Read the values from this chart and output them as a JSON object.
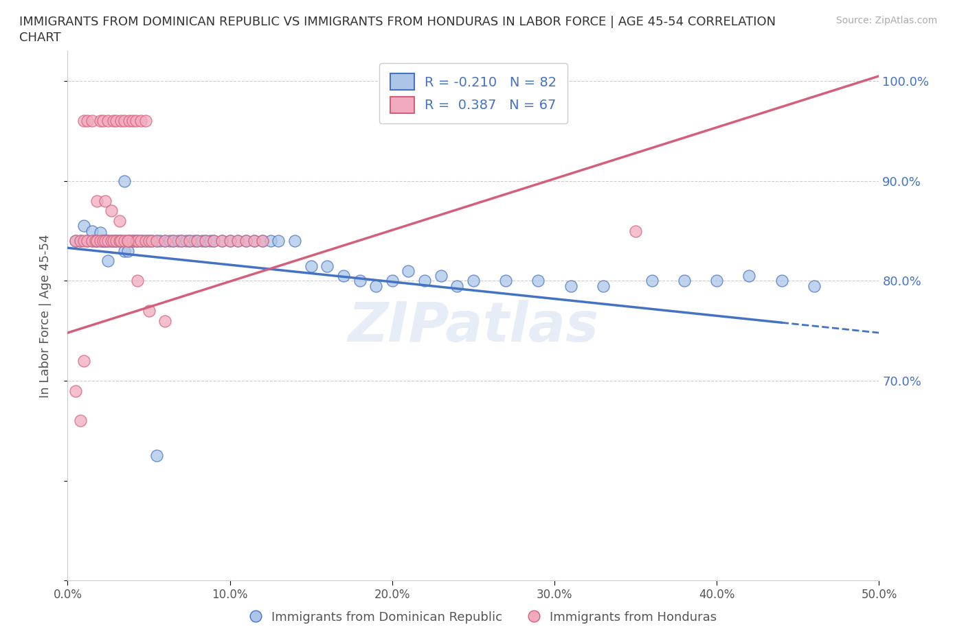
{
  "title_line1": "IMMIGRANTS FROM DOMINICAN REPUBLIC VS IMMIGRANTS FROM HONDURAS IN LABOR FORCE | AGE 45-54 CORRELATION",
  "title_line2": "CHART",
  "source_text": "Source: ZipAtlas.com",
  "ylabel": "In Labor Force | Age 45-54",
  "xlim": [
    0.0,
    0.5
  ],
  "ylim": [
    0.5,
    1.03
  ],
  "yticks_right": [
    0.7,
    0.8,
    0.9,
    1.0
  ],
  "ytick_labels_right": [
    "70.0%",
    "80.0%",
    "90.0%",
    "100.0%"
  ],
  "xticks": [
    0.0,
    0.1,
    0.2,
    0.3,
    0.4,
    0.5
  ],
  "xtick_labels": [
    "0.0%",
    "10.0%",
    "20.0%",
    "30.0%",
    "40.0%",
    "50.0%"
  ],
  "blue_R": -0.21,
  "blue_N": 82,
  "pink_R": 0.387,
  "pink_N": 67,
  "blue_color": "#adc6e8",
  "pink_color": "#f2abbe",
  "blue_line_color": "#4472c4",
  "pink_line_color": "#d45f7a",
  "legend_text_color": "#4472c4",
  "grid_color": "#cccccc",
  "blue_line_x0": 0.0,
  "blue_line_y0": 0.833,
  "blue_line_x1": 0.5,
  "blue_line_y1": 0.748,
  "blue_line_solid_end": 0.44,
  "pink_line_x0": 0.0,
  "pink_line_y0": 0.748,
  "pink_line_x1": 0.5,
  "pink_line_y1": 1.005,
  "blue_scatter_x": [
    0.005,
    0.008,
    0.01,
    0.012,
    0.015,
    0.015,
    0.017,
    0.018,
    0.02,
    0.02,
    0.022,
    0.022,
    0.023,
    0.024,
    0.025,
    0.025,
    0.027,
    0.028,
    0.03,
    0.03,
    0.032,
    0.033,
    0.035,
    0.035,
    0.037,
    0.038,
    0.04,
    0.04,
    0.042,
    0.043,
    0.045,
    0.046,
    0.048,
    0.05,
    0.052,
    0.055,
    0.057,
    0.06,
    0.063,
    0.065,
    0.068,
    0.07,
    0.073,
    0.075,
    0.078,
    0.08,
    0.083,
    0.085,
    0.088,
    0.09,
    0.095,
    0.1,
    0.105,
    0.11,
    0.115,
    0.12,
    0.125,
    0.13,
    0.14,
    0.15,
    0.16,
    0.17,
    0.18,
    0.19,
    0.2,
    0.21,
    0.22,
    0.23,
    0.24,
    0.25,
    0.27,
    0.29,
    0.31,
    0.33,
    0.36,
    0.38,
    0.4,
    0.42,
    0.44,
    0.46,
    0.035,
    0.055
  ],
  "blue_scatter_y": [
    0.84,
    0.84,
    0.855,
    0.84,
    0.84,
    0.85,
    0.84,
    0.84,
    0.84,
    0.848,
    0.84,
    0.84,
    0.84,
    0.84,
    0.84,
    0.82,
    0.84,
    0.84,
    0.84,
    0.84,
    0.84,
    0.84,
    0.84,
    0.83,
    0.83,
    0.84,
    0.84,
    0.84,
    0.84,
    0.84,
    0.84,
    0.84,
    0.84,
    0.84,
    0.84,
    0.84,
    0.84,
    0.84,
    0.84,
    0.84,
    0.84,
    0.84,
    0.84,
    0.84,
    0.84,
    0.84,
    0.84,
    0.84,
    0.84,
    0.84,
    0.84,
    0.84,
    0.84,
    0.84,
    0.84,
    0.84,
    0.84,
    0.84,
    0.84,
    0.815,
    0.815,
    0.805,
    0.8,
    0.795,
    0.8,
    0.81,
    0.8,
    0.805,
    0.795,
    0.8,
    0.8,
    0.8,
    0.795,
    0.795,
    0.8,
    0.8,
    0.8,
    0.805,
    0.8,
    0.795,
    0.9,
    0.625
  ],
  "pink_scatter_x": [
    0.005,
    0.008,
    0.01,
    0.012,
    0.015,
    0.017,
    0.018,
    0.02,
    0.022,
    0.023,
    0.025,
    0.027,
    0.028,
    0.03,
    0.032,
    0.033,
    0.035,
    0.037,
    0.038,
    0.04,
    0.042,
    0.043,
    0.045,
    0.048,
    0.05,
    0.052,
    0.055,
    0.06,
    0.065,
    0.07,
    0.075,
    0.08,
    0.085,
    0.09,
    0.095,
    0.1,
    0.105,
    0.11,
    0.115,
    0.12,
    0.01,
    0.012,
    0.015,
    0.02,
    0.022,
    0.025,
    0.028,
    0.03,
    0.033,
    0.035,
    0.038,
    0.04,
    0.042,
    0.045,
    0.048,
    0.018,
    0.023,
    0.027,
    0.032,
    0.037,
    0.043,
    0.05,
    0.06,
    0.35,
    0.005,
    0.008,
    0.01
  ],
  "pink_scatter_y": [
    0.84,
    0.84,
    0.84,
    0.84,
    0.84,
    0.84,
    0.84,
    0.84,
    0.84,
    0.84,
    0.84,
    0.84,
    0.84,
    0.84,
    0.84,
    0.84,
    0.84,
    0.84,
    0.84,
    0.84,
    0.84,
    0.84,
    0.84,
    0.84,
    0.84,
    0.84,
    0.84,
    0.84,
    0.84,
    0.84,
    0.84,
    0.84,
    0.84,
    0.84,
    0.84,
    0.84,
    0.84,
    0.84,
    0.84,
    0.84,
    0.96,
    0.96,
    0.96,
    0.96,
    0.96,
    0.96,
    0.96,
    0.96,
    0.96,
    0.96,
    0.96,
    0.96,
    0.96,
    0.96,
    0.96,
    0.88,
    0.88,
    0.87,
    0.86,
    0.84,
    0.8,
    0.77,
    0.76,
    0.85,
    0.69,
    0.66,
    0.72
  ]
}
